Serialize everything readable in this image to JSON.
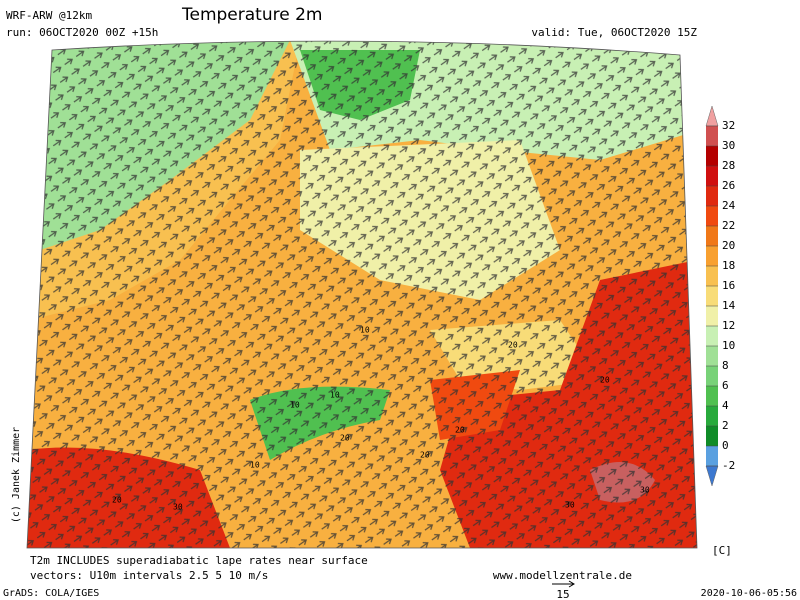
{
  "header": {
    "model": "WRF-ARW @12km",
    "title": "Temperature 2m",
    "run": "run: 06OCT2020 00Z +15h",
    "valid": "valid: Tue, 06OCT2020 15Z"
  },
  "credit": "(c) Janek Zimmer",
  "colorbar": {
    "unit": "[C]",
    "ticks": [
      32,
      30,
      28,
      26,
      24,
      22,
      20,
      18,
      16,
      14,
      12,
      10,
      8,
      6,
      4,
      2,
      0,
      -2
    ],
    "colors": [
      "#f0a0a0",
      "#d05050",
      "#b40000",
      "#d01010",
      "#e02a10",
      "#f04a10",
      "#f07818",
      "#f8a030",
      "#f8c050",
      "#f8dc78",
      "#f0f0a8",
      "#c8f0b4",
      "#a0e096",
      "#78d278",
      "#50c050",
      "#28aa3c",
      "#108c28",
      "#5aa0e0",
      "#3c78d0"
    ]
  },
  "contour_labels": [
    "10",
    "10",
    "10",
    "10",
    "20",
    "20",
    "20",
    "20",
    "20",
    "20",
    "30",
    "30",
    "30"
  ],
  "footer": {
    "note": "T2m INCLUDES superadiabatic lape rates near surface",
    "vectors": "vectors: U10m intervals 2.5 5 10 m/s",
    "site": "www.modellzentrale.de",
    "software": "GrADS: COLA/IGES",
    "scale": "15",
    "timestamp": "2020-10-06-05:56"
  }
}
